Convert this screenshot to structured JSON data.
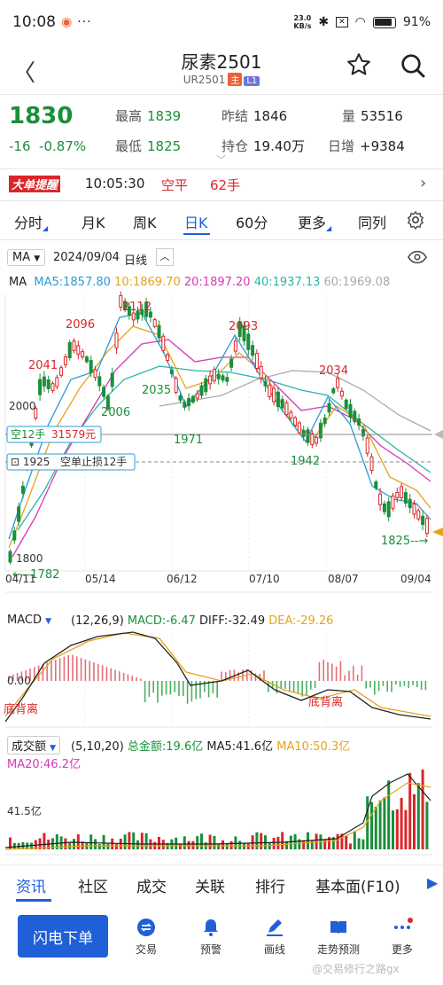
{
  "status_bar": {
    "time": "10:08",
    "net_speed_top": "23.0",
    "net_speed_bottom": "KB/s",
    "battery": "91%"
  },
  "header": {
    "title": "尿素2501",
    "subtitle_code": "UR2501",
    "tag_main": "主",
    "tag_level": "L1"
  },
  "quote": {
    "price": "1830",
    "change": "-16",
    "change_pct": "-0.87%",
    "high_label": "最高",
    "high": "1839",
    "low_label": "最低",
    "low": "1825",
    "prev_label": "昨结",
    "prev": "1846",
    "oi_label": "持仓",
    "oi": "19.40万",
    "vol_label": "量",
    "vol": "53516",
    "daily_label": "日增",
    "daily": "+9384"
  },
  "big_order": {
    "tag": "大单提醒",
    "time": "10:05:30",
    "type": "空平",
    "qty": "62手"
  },
  "period_tabs": [
    "分时",
    "月K",
    "周K",
    "日K",
    "60分",
    "更多",
    "同列"
  ],
  "ma_bar": {
    "selector": "MA",
    "date": "2024/09/04",
    "period": "日线"
  },
  "ma_legend": {
    "name": "MA",
    "ma5": "MA5:1857.80",
    "ma10": "10:1869.70",
    "ma20": "20:1897.20",
    "ma40": "40:1937.13",
    "ma60": "60:1969.08",
    "colors": {
      "ma5": "#2a9bd8",
      "ma10": "#e7a21b",
      "ma20": "#d838b8",
      "ma40": "#2ab5a8",
      "ma60": "#aaaaaa"
    }
  },
  "chart_data": {
    "type": "candlestick",
    "y_ticks": [
      "2000",
      "1800"
    ],
    "x_ticks": [
      "04/11",
      "05/14",
      "06/12",
      "07/10",
      "08/07",
      "09/04"
    ],
    "annotations": [
      "2041",
      "2096",
      "2112",
      "2006",
      "2035",
      "1971",
      "2093",
      "1942",
      "2034",
      "1782",
      "1825"
    ],
    "position_lines": [
      {
        "label": "空12手",
        "value": "31579元"
      },
      {
        "label": "1925",
        "value": "空单止损12手"
      }
    ]
  },
  "macd": {
    "selector": "MACD",
    "params": "(12,26,9)",
    "macd": "MACD:-6.47",
    "diff": "DIFF:-32.49",
    "dea": "DEA:-29.26",
    "zero_label": "0.00",
    "div_label_1": "底背离",
    "div_label_2": "底背离"
  },
  "volume": {
    "selector": "成交额",
    "params": "(5,10,20)",
    "total": "总金额:19.6亿",
    "ma5": "MA5:41.6亿",
    "ma10": "MA10:50.3亿",
    "ma20": "MA20:46.2亿",
    "axis_label": "41.5亿"
  },
  "bottom_tabs": [
    "资讯",
    "社区",
    "成交",
    "关联",
    "排行",
    "基本面(F10)"
  ],
  "actions": {
    "flash": "闪电下单",
    "trade": "交易",
    "alert": "预警",
    "draw": "画线",
    "forecast": "走势预测",
    "more": "更多"
  },
  "watermark": "@交易修行之路gx"
}
